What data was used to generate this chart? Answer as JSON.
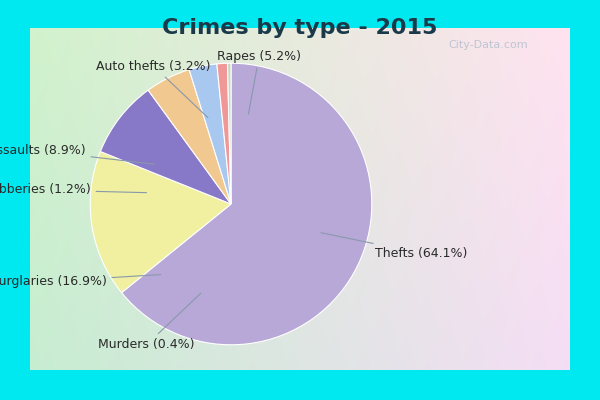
{
  "title": "Crimes by type - 2015",
  "labels": [
    "Thefts",
    "Burglaries",
    "Assaults",
    "Rapes",
    "Auto thefts",
    "Robberies",
    "Murders"
  ],
  "percentages": [
    64.1,
    16.9,
    8.9,
    5.2,
    3.2,
    1.2,
    0.4
  ],
  "colors": [
    "#b8a8d8",
    "#f0f0a0",
    "#8878c8",
    "#f0c890",
    "#a8c8f0",
    "#f09898",
    "#c8d8c0"
  ],
  "title_fontsize": 16,
  "label_fontsize": 9,
  "bg_cyan": "#00e8f0",
  "bg_inner_tl": "#c0e8d0",
  "bg_inner_br": "#e8e8f4",
  "watermark": "City-Data.com",
  "cyan_bar_height": 0.075
}
